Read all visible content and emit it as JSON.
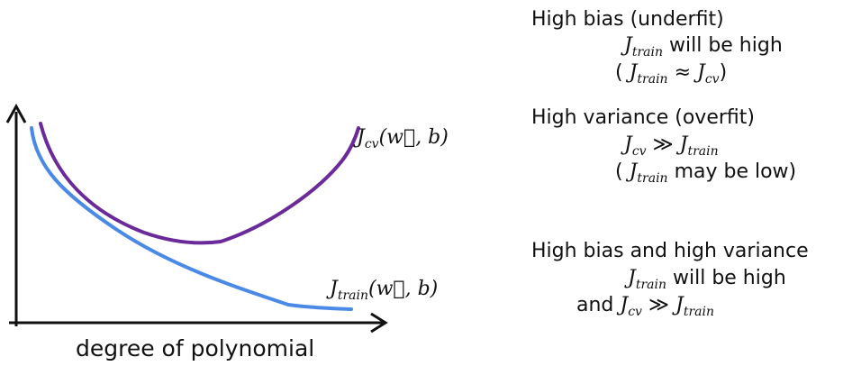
{
  "diagram": {
    "x_axis_label": "degree of polynomial",
    "curves": {
      "cv": {
        "symbol": "J",
        "subscript": "cv",
        "args": "(w⃗, b)",
        "color": "#6a2a9a"
      },
      "train": {
        "symbol": "J",
        "subscript": "train",
        "args": "(w⃗, b)",
        "color": "#4a8ae6"
      }
    }
  },
  "notes": {
    "bias": {
      "title": "High bias (underfit)",
      "line1_sub": "train",
      "line1_text": " will be high",
      "line2_open": "( ",
      "line2_sub1": "train",
      "line2_op": " ≈ ",
      "line2_sub2": "cv",
      "line2_close": ")"
    },
    "variance": {
      "title": "High variance (overfit)",
      "line1_sub1": "cv",
      "line1_op": " ≫ ",
      "line1_sub2": "train",
      "line2_open": "( ",
      "line2_sub": "train",
      "line2_text": " may be low)"
    },
    "both": {
      "title": "High bias and high variance",
      "line1_sub": "train",
      "line1_text": " will be high",
      "line2_and": "and ",
      "line2_sub1": "cv",
      "line2_op": " ≫ ",
      "line2_sub2": "train"
    }
  }
}
